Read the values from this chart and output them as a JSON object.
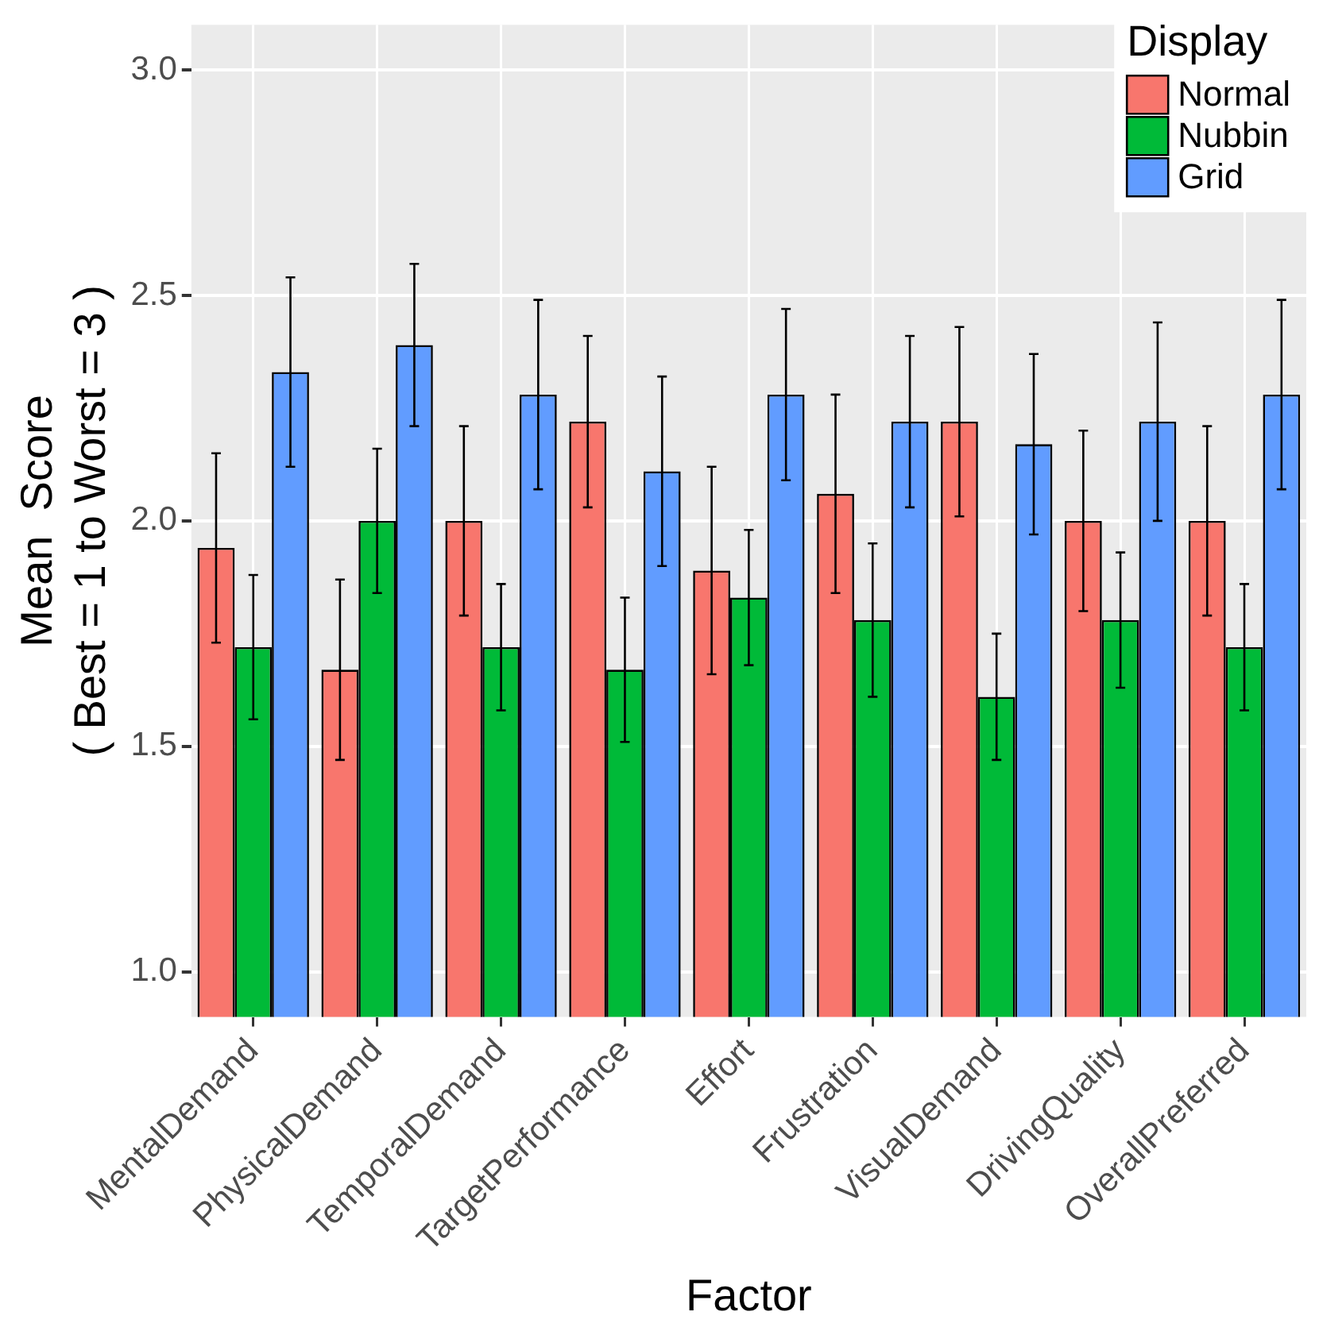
{
  "chart_data": {
    "type": "bar",
    "xlabel": "Factor",
    "ylabel": "Mean  Score\n( Best = 1 to Worst = 3 )",
    "legend_title": "Display",
    "categories": [
      "MentalDemand",
      "PhysicalDemand",
      "TemporalDemand",
      "TargetPerformance",
      "Effort",
      "Frustration",
      "VisualDemand",
      "DrivingQuality",
      "OverallPreferred"
    ],
    "series": [
      {
        "name": "Normal",
        "color": "#f8766d",
        "values": [
          1.94,
          1.67,
          2.0,
          2.22,
          1.89,
          2.06,
          2.22,
          2.0,
          2.0
        ],
        "errors": [
          0.21,
          0.2,
          0.21,
          0.19,
          0.23,
          0.22,
          0.21,
          0.2,
          0.21
        ]
      },
      {
        "name": "Nubbin",
        "color": "#00ba38",
        "values": [
          1.72,
          2.0,
          1.72,
          1.67,
          1.83,
          1.78,
          1.61,
          1.78,
          1.72
        ],
        "errors": [
          0.16,
          0.16,
          0.14,
          0.16,
          0.15,
          0.17,
          0.14,
          0.15,
          0.14
        ]
      },
      {
        "name": "Grid",
        "color": "#619cff",
        "values": [
          2.33,
          2.39,
          2.28,
          2.11,
          2.28,
          2.22,
          2.17,
          2.22,
          2.28
        ],
        "errors": [
          0.21,
          0.18,
          0.21,
          0.21,
          0.19,
          0.19,
          0.2,
          0.22,
          0.21
        ]
      }
    ],
    "ylim": [
      0.9,
      3.1
    ],
    "yticks": [
      {
        "value": 1,
        "label": "1.0"
      },
      {
        "value": 1.5,
        "label": "1.5"
      },
      {
        "value": 2,
        "label": "2.0"
      },
      {
        "value": 2.5,
        "label": "2.5"
      },
      {
        "value": 3,
        "label": "3.0"
      }
    ],
    "grid": true,
    "legend": "top right"
  }
}
